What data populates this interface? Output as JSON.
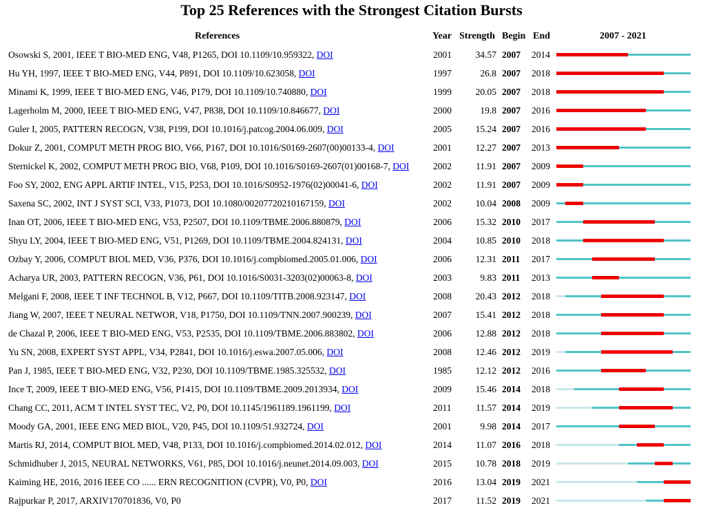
{
  "title": "Top 25 References with the Strongest Citation Bursts",
  "headers": {
    "references": "References",
    "year": "Year",
    "strength": "Strength",
    "begin": "Begin",
    "end": "End",
    "range": "2007 - 2021"
  },
  "colors": {
    "burst": "#ee0000",
    "active": "#4fc3c8",
    "inactive": "#c9e7ea",
    "link": "#0000ee"
  },
  "chart_data": {
    "type": "table",
    "timeline_start": 2007,
    "timeline_end": 2021,
    "rows": [
      {
        "ref": "Osowski S, 2001, IEEE T BIO-MED ENG, V48, P1265, DOI 10.1109/10.959322, ",
        "doi": "DOI",
        "year": "2001",
        "strength": "34.57",
        "begin": "2007",
        "end": "2014"
      },
      {
        "ref": "Hu YH, 1997, IEEE T BIO-MED ENG, V44, P891, DOI 10.1109/10.623058, ",
        "doi": "DOI",
        "year": "1997",
        "strength": "26.8",
        "begin": "2007",
        "end": "2018"
      },
      {
        "ref": "Minami K, 1999, IEEE T BIO-MED ENG, V46, P179, DOI 10.1109/10.740880, ",
        "doi": "DOI",
        "year": "1999",
        "strength": "20.05",
        "begin": "2007",
        "end": "2018"
      },
      {
        "ref": "Lagerholm M, 2000, IEEE T BIO-MED ENG, V47, P838, DOI 10.1109/10.846677, ",
        "doi": "DOI",
        "year": "2000",
        "strength": "19.8",
        "begin": "2007",
        "end": "2016"
      },
      {
        "ref": "Guler I, 2005, PATTERN RECOGN, V38, P199, DOI 10.1016/j.patcog.2004.06.009, ",
        "doi": "DOI",
        "year": "2005",
        "strength": "15.24",
        "begin": "2007",
        "end": "2016"
      },
      {
        "ref": "Dokur Z, 2001, COMPUT METH PROG BIO, V66, P167, DOI 10.1016/S0169-2607(00)00133-4, ",
        "doi": "DOI",
        "year": "2001",
        "strength": "12.27",
        "begin": "2007",
        "end": "2013"
      },
      {
        "ref": "Sternickel K, 2002, COMPUT METH PROG BIO, V68, P109, DOI 10.1016/S0169-2607(01)00168-7, ",
        "doi": "DOI",
        "year": "2002",
        "strength": "11.91",
        "begin": "2007",
        "end": "2009"
      },
      {
        "ref": "Foo SY, 2002, ENG APPL ARTIF INTEL, V15, P253, DOI 10.1016/S0952-1976(02)00041-6, ",
        "doi": "DOI",
        "year": "2002",
        "strength": "11.91",
        "begin": "2007",
        "end": "2009"
      },
      {
        "ref": "Saxena SC, 2002, INT J SYST SCI, V33, P1073, DOI 10.1080/00207720210167159, ",
        "doi": "DOI",
        "year": "2002",
        "strength": "10.04",
        "begin": "2008",
        "end": "2009"
      },
      {
        "ref": "Inan OT, 2006, IEEE T BIO-MED ENG, V53, P2507, DOI 10.1109/TBME.2006.880879, ",
        "doi": "DOI",
        "year": "2006",
        "strength": "15.32",
        "begin": "2010",
        "end": "2017"
      },
      {
        "ref": "Shyu LY, 2004, IEEE T BIO-MED ENG, V51, P1269, DOI 10.1109/TBME.2004.824131, ",
        "doi": "DOI",
        "year": "2004",
        "strength": "10.85",
        "begin": "2010",
        "end": "2018"
      },
      {
        "ref": "Ozbay Y, 2006, COMPUT BIOL MED, V36, P376, DOI 10.1016/j.compbiomed.2005.01.006, ",
        "doi": "DOI",
        "year": "2006",
        "strength": "12.31",
        "begin": "2011",
        "end": "2017"
      },
      {
        "ref": "Acharya UR, 2003, PATTERN RECOGN, V36, P61, DOI 10.1016/S0031-3203(02)00063-8, ",
        "doi": "DOI",
        "year": "2003",
        "strength": "9.83",
        "begin": "2011",
        "end": "2013"
      },
      {
        "ref": "Melgani F, 2008, IEEE T INF TECHNOL B, V12, P667, DOI 10.1109/TITB.2008.923147, ",
        "doi": "DOI",
        "year": "2008",
        "strength": "20.43",
        "begin": "2012",
        "end": "2018"
      },
      {
        "ref": "Jiang W, 2007, IEEE T NEURAL NETWOR, V18, P1750, DOI 10.1109/TNN.2007.900239, ",
        "doi": "DOI",
        "year": "2007",
        "strength": "15.41",
        "begin": "2012",
        "end": "2018"
      },
      {
        "ref": "de Chazal P, 2006, IEEE T BIO-MED ENG, V53, P2535, DOI 10.1109/TBME.2006.883802, ",
        "doi": "DOI",
        "year": "2006",
        "strength": "12.88",
        "begin": "2012",
        "end": "2018"
      },
      {
        "ref": "Yu SN, 2008, EXPERT SYST APPL, V34, P2841, DOI 10.1016/j.eswa.2007.05.006, ",
        "doi": "DOI",
        "year": "2008",
        "strength": "12.46",
        "begin": "2012",
        "end": "2019"
      },
      {
        "ref": "Pan J, 1985, IEEE T BIO-MED ENG, V32, P230, DOI 10.1109/TBME.1985.325532, ",
        "doi": "DOI",
        "year": "1985",
        "strength": "12.12",
        "begin": "2012",
        "end": "2016"
      },
      {
        "ref": "Ince T, 2009, IEEE T BIO-MED ENG, V56, P1415, DOI 10.1109/TBME.2009.2013934, ",
        "doi": "DOI",
        "year": "2009",
        "strength": "15.46",
        "begin": "2014",
        "end": "2018"
      },
      {
        "ref": "Chang CC, 2011, ACM T INTEL SYST TEC, V2, P0, DOI 10.1145/1961189.1961199, ",
        "doi": "DOI",
        "year": "2011",
        "strength": "11.57",
        "begin": "2014",
        "end": "2019"
      },
      {
        "ref": "Moody GA, 2001, IEEE ENG MED BIOL, V20, P45, DOI 10.1109/51.932724, ",
        "doi": "DOI",
        "year": "2001",
        "strength": "9.98",
        "begin": "2014",
        "end": "2017"
      },
      {
        "ref": "Martis RJ, 2014, COMPUT BIOL MED, V48, P133, DOI 10.1016/j.compbiomed.2014.02.012, ",
        "doi": "DOI",
        "year": "2014",
        "strength": "11.07",
        "begin": "2016",
        "end": "2018"
      },
      {
        "ref": "Schmidhuber J, 2015, NEURAL NETWORKS, V61, P85, DOI 10.1016/j.neunet.2014.09.003, ",
        "doi": "DOI",
        "year": "2015",
        "strength": "10.78",
        "begin": "2018",
        "end": "2019"
      },
      {
        "ref": "Kaiming HE, 2016, 2016 IEEE CO ...... ERN RECOGNITION (CVPR), V0, P0, ",
        "doi": "DOI",
        "year": "2016",
        "strength": "13.04",
        "begin": "2019",
        "end": "2021"
      },
      {
        "ref": "Rajpurkar P, 2017, ARXIV170701836, V0, P0",
        "doi": "",
        "year": "2017",
        "strength": "11.52",
        "begin": "2019",
        "end": "2021"
      }
    ]
  }
}
